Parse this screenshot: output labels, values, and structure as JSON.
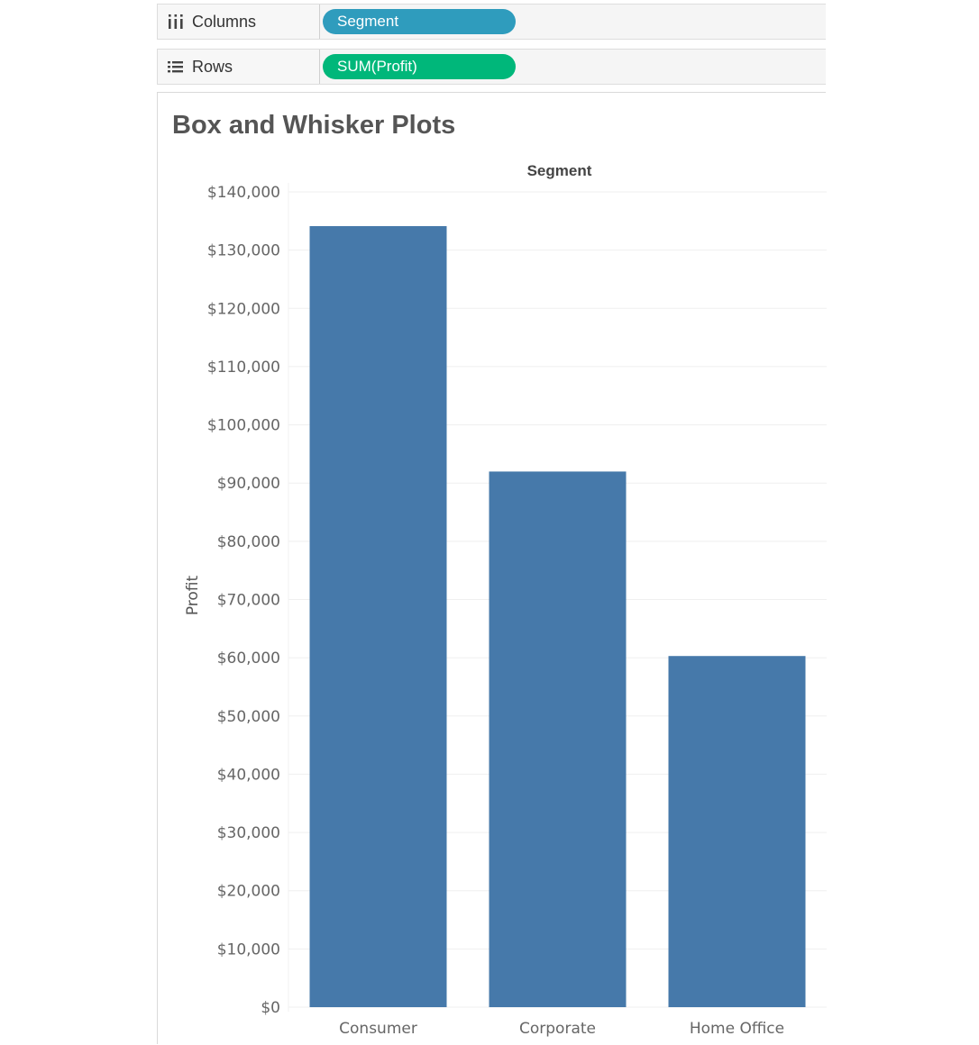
{
  "shelves": {
    "columns": {
      "label": "Columns",
      "pill": "Segment",
      "icon": "columns-icon"
    },
    "rows": {
      "label": "Rows",
      "pill": "SUM(Profit)",
      "icon": "rows-icon"
    }
  },
  "colors": {
    "dimension_pill": "#2f9cbd",
    "measure_pill": "#00b77a",
    "bar": "#4679aa"
  },
  "sheet": {
    "title": "Box and Whisker Plots"
  },
  "chart_data": {
    "type": "bar",
    "column_header": "Segment",
    "ylabel": "Profit",
    "categories": [
      "Consumer",
      "Corporate",
      "Home Office"
    ],
    "values": [
      134119,
      91979,
      60299
    ],
    "ylim": [
      0,
      140000
    ],
    "y_ticks": [
      {
        "value": 0,
        "label": "$0"
      },
      {
        "value": 10000,
        "label": "$10,000"
      },
      {
        "value": 20000,
        "label": "$20,000"
      },
      {
        "value": 30000,
        "label": "$30,000"
      },
      {
        "value": 40000,
        "label": "$40,000"
      },
      {
        "value": 50000,
        "label": "$50,000"
      },
      {
        "value": 60000,
        "label": "$60,000"
      },
      {
        "value": 70000,
        "label": "$70,000"
      },
      {
        "value": 80000,
        "label": "$80,000"
      },
      {
        "value": 90000,
        "label": "$90,000"
      },
      {
        "value": 100000,
        "label": "$100,000"
      },
      {
        "value": 110000,
        "label": "$110,000"
      },
      {
        "value": 120000,
        "label": "$120,000"
      },
      {
        "value": 130000,
        "label": "$130,000"
      },
      {
        "value": 140000,
        "label": "$140,000"
      }
    ],
    "grid": true,
    "legend": "none"
  }
}
